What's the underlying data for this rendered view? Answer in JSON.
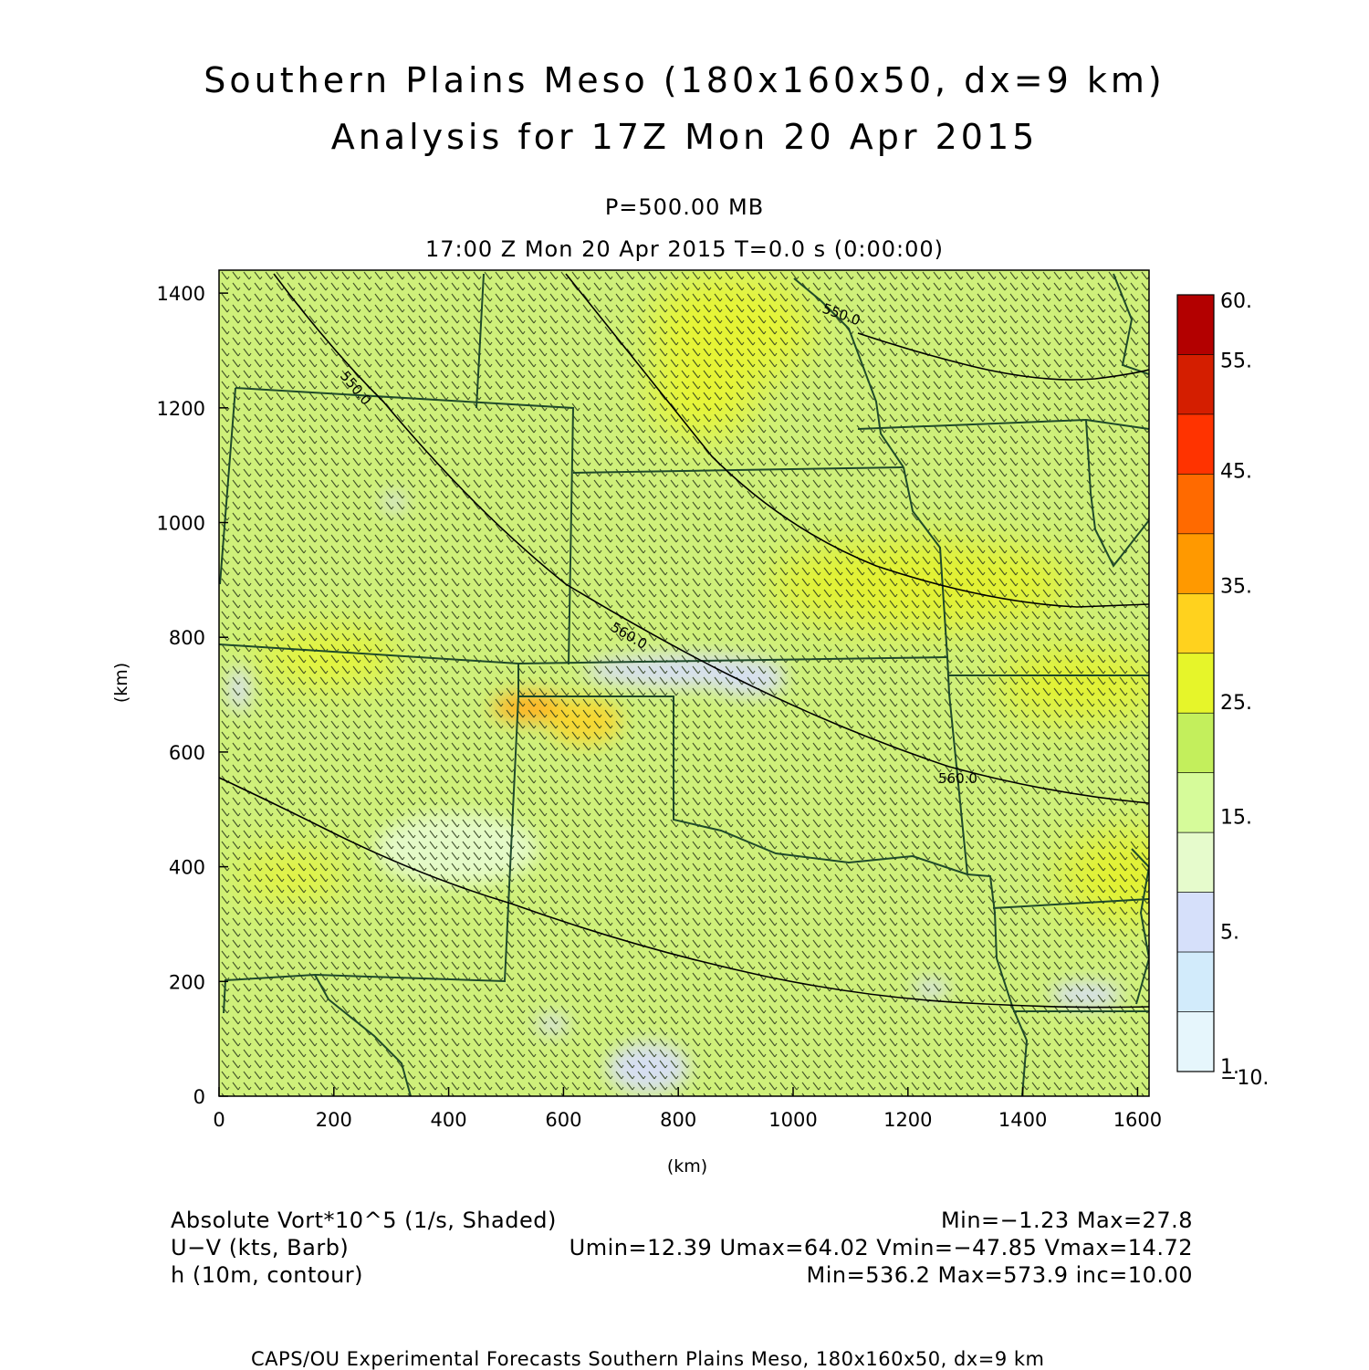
{
  "title": {
    "line1": "Southern Plains Meso (180x160x50, dx=9 km)",
    "line2": "Analysis for 17Z Mon 20 Apr 2015"
  },
  "subtitle": {
    "level": "P=500.00 MB",
    "time": "17:00 Z Mon 20 Apr 2015    T=0.0 s (0:00:00)"
  },
  "axes": {
    "x_ticks": [
      "0",
      "200",
      "400",
      "600",
      "800",
      "1000",
      "1200",
      "1400",
      "1600"
    ],
    "y_ticks": [
      "0",
      "200",
      "400",
      "600",
      "800",
      "1000",
      "1200",
      "1400"
    ],
    "x_label": "(km)",
    "y_label": "(km)",
    "x_range": [
      0,
      1620
    ],
    "y_range": [
      0,
      1440
    ]
  },
  "colorbar": {
    "labels": [
      "60.",
      "55.",
      "45.",
      "35.",
      "25.",
      "15.",
      "5.",
      "1.",
      "−10."
    ],
    "colors": [
      "#b30000",
      "#d41e00",
      "#ff3300",
      "#ff6a00",
      "#ff9900",
      "#ffd21e",
      "#e6f52a",
      "#c3ef5c",
      "#d6fb9a",
      "#e6fbcc",
      "#d6e0fa",
      "#d2ebfb",
      "#e6f6fc"
    ]
  },
  "contours": [
    {
      "label": "550.0"
    },
    {
      "label": "560.0"
    },
    {
      "label": "560.0"
    },
    {
      "label": "550.0"
    }
  ],
  "legend": {
    "field1_name": "Absolute Vort*10^5 (1/s, Shaded)",
    "field1_stats": "Min=−1.23 Max=27.8",
    "field2_name": "U−V (kts, Barb)",
    "field2_stats": "Umin=12.39 Umax=64.02 Vmin=−47.85 Vmax=14.72",
    "field3_name": "h (10m, contour)",
    "field3_stats": "Min=536.2 Max=573.9 inc=10.00"
  },
  "footer": "CAPS/OU Experimental Forecasts  Southern Plains Meso, 180x160x50, dx=9 km",
  "colors": {
    "field_base": "#cff07a",
    "border": "#1f4a2a",
    "contour": "#000000"
  }
}
